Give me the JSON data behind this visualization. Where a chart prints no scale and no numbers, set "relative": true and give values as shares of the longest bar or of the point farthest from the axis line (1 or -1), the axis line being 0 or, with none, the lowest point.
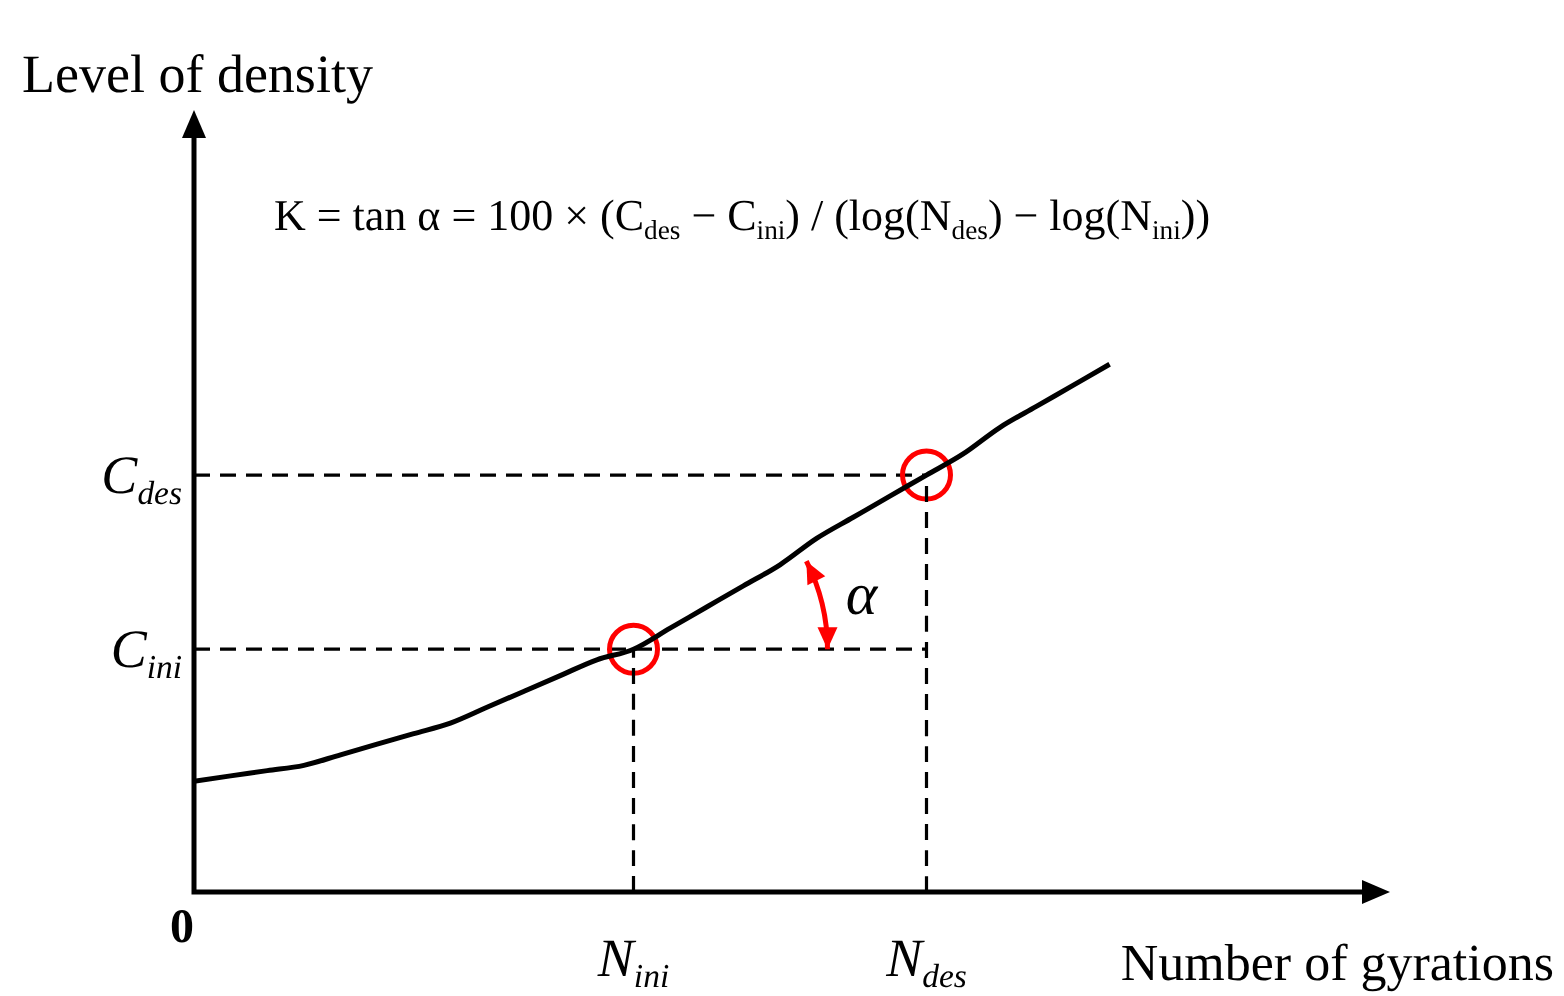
{
  "chart_data": {
    "type": "line",
    "relative": true,
    "ylabel": "Level of density",
    "xlabel": "Number of gyrations",
    "categories": [
      "0",
      null,
      null,
      null,
      null,
      null,
      null,
      null,
      null,
      null,
      null,
      null,
      "N$_{ini}$",
      null,
      null,
      null,
      null,
      null,
      null,
      null,
      "N$_{des}$",
      null,
      null,
      null,
      null,
      null,
      null,
      null,
      null,
      null,
      null,
      null,
      null
    ],
    "series": [
      {
        "color": "#000000",
        "marker": "none",
        "line_style": "dashed",
        "x": [
          "N$_{ini}$",
          "N$_{ini}$"
        ],
        "values": [
          0,
          0.46
        ]
      },
      {
        "color": "#000000",
        "marker": "none",
        "line_style": "dashed",
        "x": [
          "N$_{des}$",
          "N$_{des}$"
        ],
        "values": [
          0,
          0.79
        ]
      },
      {
        "color": "#000000",
        "marker": "none",
        "line_style": "solid",
        "values": [
          0.21,
          0.22,
          0.23,
          0.24,
          0.26,
          0.28,
          0.3,
          0.32,
          0.35,
          0.38,
          0.41,
          0.44,
          0.46,
          0.5,
          0.54,
          0.58,
          0.62,
          0.67,
          0.71,
          0.75,
          0.79,
          0.83,
          0.88,
          0.92,
          0.96,
          1,
          null,
          null,
          null,
          null,
          null,
          null,
          null
        ]
      },
      {
        "type": "scatter",
        "color": "#ff0000",
        "marker": "circle",
        "x": [
          "N$_{ini}$",
          "N$_{des}$"
        ],
        "values": [
          0.46,
          0.79
        ]
      }
    ],
    "ref_lines": [
      {
        "axis": "y",
        "value": 0.46,
        "label": "C$_{ini}$",
        "color": "#000000",
        "line_style": "dashed"
      },
      {
        "axis": "y",
        "value": 0.79,
        "label": "C$_{des}$",
        "color": "#000000",
        "line_style": "dashed"
      }
    ],
    "annotations": [
      "K = tan α = 100 × (C$_{des}$ − C$_{ini}$) / (log(N$_{des}$) − log(N$_{ini}$))",
      "α"
    ]
  }
}
